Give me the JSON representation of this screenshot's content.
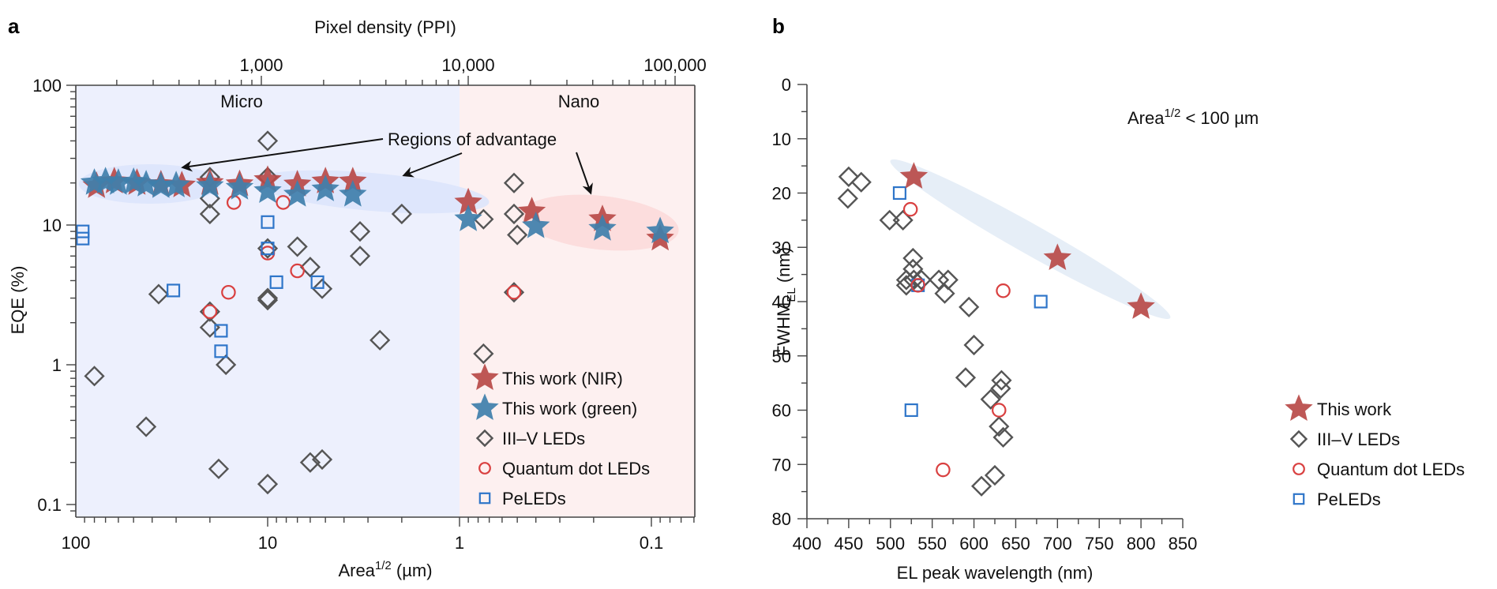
{
  "chart_data": [
    {
      "panel": "a",
      "type": "scatter",
      "xlabel": "Area^1/2 (µm)",
      "xlabel_main": "Area",
      "xlabel_sup": "1/2",
      "xlabel_unit": " (µm)",
      "ylabel": "EQE (%)",
      "top_xlabel": "Pixel density (PPI)",
      "x_scale": "log-reversed",
      "y_scale": "log",
      "xlim": [
        100,
        0.06
      ],
      "ylim": [
        0.08,
        100
      ],
      "x_ticks": [
        {
          "value": 100,
          "label": "100"
        },
        {
          "value": 10,
          "label": "10"
        },
        {
          "value": 1,
          "label": "1"
        },
        {
          "value": 0.1,
          "label": "0.1"
        }
      ],
      "y_ticks": [
        {
          "value": 100,
          "label": "100"
        },
        {
          "value": 10,
          "label": "10"
        },
        {
          "value": 1,
          "label": "1"
        },
        {
          "value": 0.1,
          "label": "0.1"
        }
      ],
      "top_x_ticks": [
        {
          "value": 1000,
          "label": "1,000"
        },
        {
          "value": 10000,
          "label": "10,000"
        },
        {
          "value": 100000,
          "label": "100,000"
        }
      ],
      "regions": [
        {
          "name": "Micro",
          "x_range": [
            100,
            1
          ],
          "color": "#edf0fd"
        },
        {
          "name": "Nano",
          "x_range": [
            1,
            0.06
          ],
          "color": "#fdf0f0"
        }
      ],
      "annotation": "Regions of advantage",
      "legend_position": "bottom-right",
      "series": [
        {
          "name": "This work (NIR)",
          "marker": "star",
          "color": "#b94a48",
          "points": [
            [
              78,
              19
            ],
            [
              63,
              20.5
            ],
            [
              48,
              20
            ],
            [
              36,
              19.5
            ],
            [
              28,
              19.2
            ],
            [
              20,
              20
            ],
            [
              14,
              19.6
            ],
            [
              10,
              21
            ],
            [
              7,
              19.5
            ],
            [
              5,
              20.5
            ],
            [
              3.6,
              20.5
            ],
            [
              0.9,
              14.5
            ],
            [
              0.42,
              12.5
            ],
            [
              0.18,
              11
            ],
            [
              0.09,
              8
            ]
          ]
        },
        {
          "name": "This work (green)",
          "marker": "star",
          "color": "#3f7fab",
          "points": [
            [
              80,
              20
            ],
            [
              70,
              20.5
            ],
            [
              60,
              20
            ],
            [
              50,
              20.3
            ],
            [
              43,
              19.5
            ],
            [
              36,
              19
            ],
            [
              30,
              19.2
            ],
            [
              20,
              19
            ],
            [
              14,
              18.5
            ],
            [
              10,
              17.5
            ],
            [
              7,
              16.5
            ],
            [
              5,
              18
            ],
            [
              3.6,
              16.5
            ],
            [
              0.9,
              11
            ],
            [
              0.4,
              9.8
            ],
            [
              0.18,
              9.4
            ],
            [
              0.09,
              9
            ]
          ]
        },
        {
          "name": "III–V LEDs",
          "marker": "diamond",
          "color": "#555555",
          "points": [
            [
              80,
              0.83
            ],
            [
              43,
              0.36
            ],
            [
              37,
              3.2
            ],
            [
              20,
              22
            ],
            [
              20,
              15.5
            ],
            [
              20,
              12
            ],
            [
              20,
              2.4
            ],
            [
              20,
              1.85
            ],
            [
              18,
              0.18
            ],
            [
              16.5,
              1
            ],
            [
              10,
              40
            ],
            [
              10,
              22
            ],
            [
              10,
              6.8
            ],
            [
              10,
              3
            ],
            [
              10,
              2.9
            ],
            [
              10,
              0.14
            ],
            [
              7,
              7
            ],
            [
              6,
              5
            ],
            [
              6,
              0.2
            ],
            [
              5.2,
              3.5
            ],
            [
              5.2,
              0.21
            ],
            [
              3.3,
              9
            ],
            [
              3.3,
              6
            ],
            [
              2.6,
              1.5
            ],
            [
              2,
              12
            ],
            [
              0.75,
              11
            ],
            [
              0.75,
              1.2
            ],
            [
              0.52,
              20
            ],
            [
              0.52,
              12
            ],
            [
              0.5,
              8.5
            ],
            [
              0.52,
              3.3
            ]
          ]
        },
        {
          "name": "Quantum dot LEDs",
          "marker": "circle",
          "color": "#d94040",
          "points": [
            [
              15,
              14.5
            ],
            [
              8.3,
              14.5
            ],
            [
              20,
              2.4
            ],
            [
              16,
              3.3
            ],
            [
              10,
              6.3
            ],
            [
              7,
              4.7
            ],
            [
              0.52,
              3.3
            ]
          ]
        },
        {
          "name": "PeLEDs",
          "marker": "square",
          "color": "#2e75c9",
          "points": [
            [
              92,
              9
            ],
            [
              92,
              8
            ],
            [
              31,
              3.4
            ],
            [
              17.5,
              1.75
            ],
            [
              17.5,
              1.25
            ],
            [
              10,
              10.5
            ],
            [
              10,
              6.8
            ],
            [
              9,
              3.9
            ],
            [
              5.5,
              3.9
            ]
          ]
        }
      ],
      "highlight_ellipses": [
        {
          "label": "micro-left",
          "color": "#dbe4fb",
          "center": [
            45,
            19.5
          ]
        },
        {
          "label": "micro-right",
          "color": "#dbe4fb",
          "center": [
            3,
            17
          ]
        },
        {
          "label": "nano",
          "color": "#fbd9d9",
          "center": [
            0.2,
            10
          ]
        }
      ]
    },
    {
      "panel": "b",
      "type": "scatter",
      "xlabel": "EL peak wavelength (nm)",
      "ylabel": "FWHM_EL (nm)",
      "ylabel_main": "FWHM",
      "ylabel_sub": "EL",
      "ylabel_unit": " (nm)",
      "x_scale": "linear",
      "y_scale": "linear-reversed",
      "xlim": [
        400,
        850
      ],
      "ylim": [
        0,
        80
      ],
      "x_ticks": [
        {
          "value": 400,
          "label": "400"
        },
        {
          "value": 450,
          "label": "450"
        },
        {
          "value": 500,
          "label": "500"
        },
        {
          "value": 550,
          "label": "550"
        },
        {
          "value": 600,
          "label": "600"
        },
        {
          "value": 650,
          "label": "650"
        },
        {
          "value": 700,
          "label": "700"
        },
        {
          "value": 750,
          "label": "750"
        },
        {
          "value": 800,
          "label": "800"
        },
        {
          "value": 850,
          "label": "850"
        }
      ],
      "y_ticks": [
        {
          "value": 0,
          "label": "0"
        },
        {
          "value": 10,
          "label": "10"
        },
        {
          "value": 20,
          "label": "20"
        },
        {
          "value": 30,
          "label": "30"
        },
        {
          "value": 40,
          "label": "40"
        },
        {
          "value": 50,
          "label": "50"
        },
        {
          "value": 60,
          "label": "60"
        },
        {
          "value": 70,
          "label": "70"
        },
        {
          "value": 80,
          "label": "80"
        }
      ],
      "annotation": "Area^1/2 < 100 µm",
      "annotation_main": "Area",
      "annotation_sup": "1/2",
      "annotation_rest": " < 100 µm",
      "legend_position": "bottom-right",
      "series": [
        {
          "name": "This work",
          "marker": "star",
          "color": "#b94a48",
          "points": [
            [
              528,
              17
            ],
            [
              700,
              32
            ],
            [
              800,
              41
            ]
          ]
        },
        {
          "name": "III–V LEDs",
          "marker": "diamond",
          "color": "#555555",
          "points": [
            [
              450,
              17
            ],
            [
              465,
              18
            ],
            [
              449,
              21
            ],
            [
              499,
              25
            ],
            [
              515,
              25
            ],
            [
              527,
              32
            ],
            [
              527,
              34
            ],
            [
              519,
              36
            ],
            [
              528,
              36
            ],
            [
              537,
              36
            ],
            [
              519,
              37
            ],
            [
              558,
              36
            ],
            [
              569,
              36
            ],
            [
              565,
              38.5
            ],
            [
              594,
              41
            ],
            [
              600,
              48
            ],
            [
              590,
              54
            ],
            [
              633,
              54.5
            ],
            [
              632,
              56
            ],
            [
              620,
              58
            ],
            [
              630,
              63
            ],
            [
              635,
              65
            ],
            [
              625,
              72
            ],
            [
              609,
              74
            ]
          ]
        },
        {
          "name": "Quantum dot LEDs",
          "marker": "circle",
          "color": "#d94040",
          "points": [
            [
              524,
              23
            ],
            [
              635,
              38
            ],
            [
              630,
              60
            ],
            [
              563,
              71
            ],
            [
              533,
              37
            ]
          ]
        },
        {
          "name": "PeLEDs",
          "marker": "square",
          "color": "#2e75c9",
          "points": [
            [
              511,
              20
            ],
            [
              533,
              37
            ],
            [
              680,
              40
            ],
            [
              525,
              60
            ]
          ]
        }
      ],
      "highlight_ellipse": {
        "color": "#e6eef7",
        "from": [
          500,
          14
        ],
        "to": [
          835,
          43
        ]
      }
    }
  ],
  "panels": {
    "a": {
      "letter": "a",
      "micro_label": "Micro",
      "nano_label": "Nano"
    },
    "b": {
      "letter": "b"
    }
  }
}
